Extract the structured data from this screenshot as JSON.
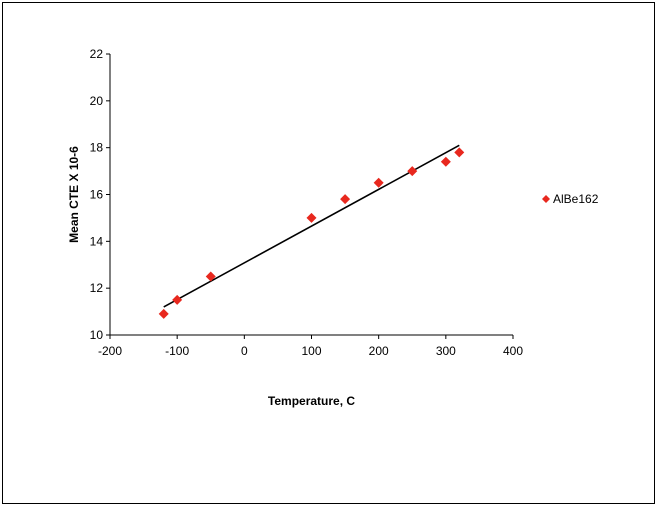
{
  "chart_data": {
    "type": "scatter",
    "title": "",
    "xlabel": "Temperature, C",
    "ylabel": "Mean CTE X 10-6",
    "xlim": [
      -200,
      400
    ],
    "ylim": [
      10,
      22
    ],
    "x_ticks": [
      -200,
      -100,
      0,
      100,
      200,
      300,
      400
    ],
    "y_ticks": [
      10,
      12,
      14,
      16,
      18,
      20,
      22
    ],
    "x_tick_labels": [
      "-200",
      "-100",
      "0",
      "100",
      "200",
      "300",
      "400"
    ],
    "y_tick_labels": [
      "10",
      "12",
      "14",
      "16",
      "18",
      "20",
      "22"
    ],
    "grid": false,
    "legend_position": "right",
    "series": [
      {
        "name": "AlBe162",
        "marker": "diamond",
        "color": "#e8281e",
        "x": [
          -120,
          -100,
          -50,
          100,
          150,
          200,
          250,
          300,
          320
        ],
        "y": [
          10.9,
          11.5,
          12.5,
          15.0,
          15.8,
          16.5,
          17.0,
          17.4,
          17.8
        ]
      }
    ],
    "trendline": {
      "type": "linear",
      "color": "#000000",
      "x": [
        -120,
        320
      ],
      "y": [
        11.2,
        18.1
      ]
    }
  }
}
